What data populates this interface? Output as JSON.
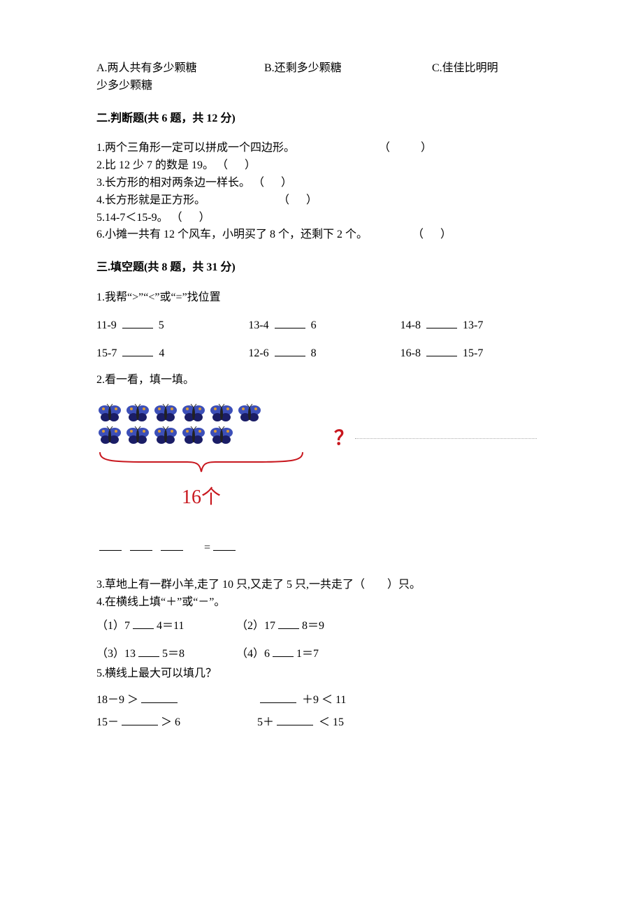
{
  "colors": {
    "text": "#000000",
    "accent_red": "#c8171e",
    "butterfly_blue": "#3c4fb8",
    "butterfly_dark": "#1a1d66",
    "butterfly_orange": "#d99a3a",
    "dotted_gray": "#aaaaaa",
    "background": "#ffffff"
  },
  "options": {
    "a": "A.两人共有多少颗糖",
    "b": "B.还剩多少颗糖",
    "c": "C.佳佳比明明",
    "c_cont": "少多少颗糖"
  },
  "section2": {
    "title": "二.判断题(共 6 题，共 12 分)",
    "items": [
      "1.两个三角形一定可以拼成一个四边形。",
      "2.比 12 少 7 的数是 19。",
      "3.长方形的相对两条边一样长。",
      "4.长方形就是正方形。",
      "5.14-7＜15-9。",
      "6.小摊一共有 12 个风车，小明买了 8 个，还剩下 2 个。"
    ],
    "paren": "（　　）",
    "paren_narrow": "（　）"
  },
  "section3": {
    "title": "三.填空题(共 8 题，共 31 分)",
    "q1": {
      "prompt": "1.我帮“>”“<”或“=”找位置",
      "rows": [
        [
          {
            "left": "11-9",
            "right": "5"
          },
          {
            "left": "13-4",
            "right": "6"
          },
          {
            "left": "14-8",
            "right": "13-7"
          }
        ],
        [
          {
            "left": "15-7",
            "right": "4"
          },
          {
            "left": "12-6",
            "right": "8"
          },
          {
            "left": "16-8",
            "right": "15-7"
          }
        ]
      ]
    },
    "q2": {
      "prompt": "2.看一看，填一填。",
      "figure": {
        "butterflies_row1": 6,
        "butterflies_row2": 5,
        "question_mark": "？",
        "total_label": "16个"
      },
      "equals": "="
    },
    "q3": "3.草地上有一群小羊,走了 10 只,又走了 5 只,一共走了（　　）只。",
    "q4": {
      "prompt": "4.在横线上填“＋”或“－”。",
      "items": [
        {
          "label": "（1）7",
          "tail": "4＝11"
        },
        {
          "label": "（2）17",
          "tail": "8＝9"
        },
        {
          "label": "（3）13",
          "tail": "5＝8"
        },
        {
          "label": "（4）6",
          "tail": "1＝7"
        }
      ]
    },
    "q5": {
      "prompt": "5.横线上最大可以填几？",
      "rows": [
        {
          "a_left": "18－9 ＞",
          "b_tail": " ＋9 ＜ 11"
        },
        {
          "a_left": "15－",
          "a_tail": "＞ 6",
          "b_left": "5＋",
          "b_tail": " ＜ 15"
        }
      ]
    }
  }
}
